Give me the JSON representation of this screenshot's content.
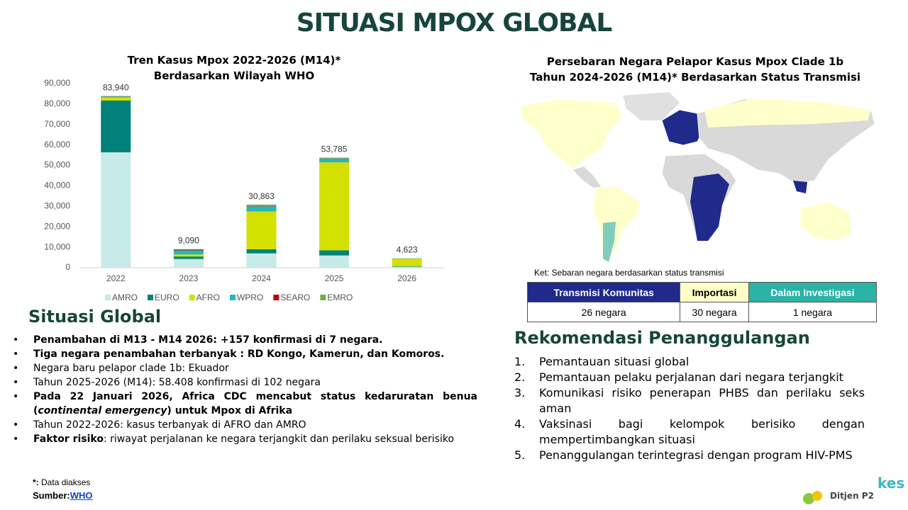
{
  "title": "SITUASI MPOX GLOBAL",
  "chart_data": {
    "type": "bar",
    "stacked": true,
    "title_lines": [
      "Tren Kasus Mpox 2022-2026 (M14)*",
      "Berdasarkan Wilayah WHO"
    ],
    "categories": [
      "2022",
      "2023",
      "2024",
      "2025",
      "2026"
    ],
    "series": [
      {
        "name": "AMRO",
        "color": "#c6ebe9",
        "values": [
          56400,
          4300,
          7000,
          6000,
          500
        ]
      },
      {
        "name": "EURO",
        "color": "#00827a",
        "values": [
          25300,
          1200,
          2000,
          2500,
          300
        ]
      },
      {
        "name": "AFRO",
        "color": "#d4e000",
        "values": [
          1500,
          1000,
          18500,
          43000,
          3600
        ]
      },
      {
        "name": "WPRO",
        "color": "#26b8b8",
        "values": [
          400,
          2000,
          2500,
          1800,
          150
        ]
      },
      {
        "name": "SEARO",
        "color": "#c00000",
        "values": [
          100,
          400,
          200,
          100,
          20
        ]
      },
      {
        "name": "EMRO",
        "color": "#70ad47",
        "values": [
          240,
          190,
          663,
          385,
          53
        ]
      }
    ],
    "totals": {
      "values": [
        83940,
        9090,
        30863,
        53785,
        4623
      ],
      "value_labels": [
        "83,940",
        "9,090",
        "30,863",
        "53,785",
        "4,623"
      ]
    },
    "ylim": [
      0,
      90000
    ],
    "yticks": [
      0,
      {
        "value": 10000,
        "label": "10,000"
      },
      {
        "value": 20000,
        "label": "20,000"
      },
      {
        "value": 30000,
        "label": "30,000"
      },
      {
        "value": 40000,
        "label": "40,000"
      },
      {
        "value": 50000,
        "label": "50,000"
      },
      {
        "value": 60000,
        "label": "60,000"
      },
      {
        "value": 70000,
        "label": "70,000"
      },
      {
        "value": 80000,
        "label": "80,000"
      },
      {
        "value": 90000,
        "label": "90,000"
      }
    ],
    "grid": false,
    "legend": "bottom"
  },
  "map": {
    "title_lines": [
      "Persebaran Negara Pelapor Kasus Mpox Clade 1b",
      "Tahun 2024-2026 (M14)* Berdasarkan Status Transmisi"
    ],
    "note": "Ket: Sebaran negara berdasarkan status transmisi"
  },
  "table": {
    "header": [
      "Transmisi Komunitas",
      "Importasi",
      "Dalam Investigasi"
    ],
    "header_colors": [
      "#1f2a8a",
      "#ffffc6",
      "#2ab3a6"
    ],
    "rows": [
      [
        "26 negara",
        "30 negara",
        "1 negara"
      ]
    ]
  },
  "situation": {
    "heading": "Situasi Global",
    "bullets": [
      [
        {
          "text": "Penambahan di M13 - M14 2026: +157 konfirmasi di 7 negara.",
          "style": "bold"
        }
      ],
      [
        {
          "text": "Tiga negara penambahan terbanyak : RD Kongo, Kamerun, dan Komoros.",
          "style": "bold"
        }
      ],
      [
        {
          "text": "Negara baru pelapor clade 1b: Ekuador",
          "style": "normal"
        }
      ],
      [
        {
          "text": "Tahun 2025-2026 (M14): 58.408 konfirmasi di 102 negara",
          "style": "normal"
        }
      ],
      [
        {
          "text": "Pada 22 Januari 2026, Africa CDC mencabut status kedaruratan benua (",
          "style": "bold"
        },
        {
          "text": "continental emergency",
          "style": "bold-italic"
        },
        {
          "text": ") untuk Mpox di Afrika",
          "style": "bold"
        }
      ],
      [
        {
          "text": "Tahun 2022-2026: kasus terbanyak di AFRO dan AMRO",
          "style": "normal"
        }
      ],
      [
        {
          "text": "Faktor risiko",
          "style": "bold"
        },
        {
          "text": ": riwayat perjalanan ke negara terjangkit dan perilaku seksual berisiko",
          "style": "normal"
        }
      ]
    ]
  },
  "recommendations": {
    "heading": "Rekomendasi Penanggulangan",
    "items": [
      {
        "number": "1.",
        "text": "Pemantauan situasi global"
      },
      {
        "number": "2.",
        "text": "Pemantauan pelaku perjalanan dari negara terjangkit"
      },
      {
        "number": "3.",
        "text": "Komunikasi risiko penerapan PHBS dan perilaku seks aman"
      },
      {
        "number": "4.",
        "text": "Vaksinasi bagi kelompok berisiko dengan mempertimbangkan situasi"
      },
      {
        "number": "5.",
        "text": "Penanggulangan terintegrasi dengan program HIV-PMS"
      }
    ]
  },
  "footer": {
    "note_mark": "*:",
    "note": "Data diakses",
    "source_label": "Sumber:",
    "source_link": "WHO",
    "logo": "Ditjen P2",
    "logo_suffix": "kes"
  }
}
